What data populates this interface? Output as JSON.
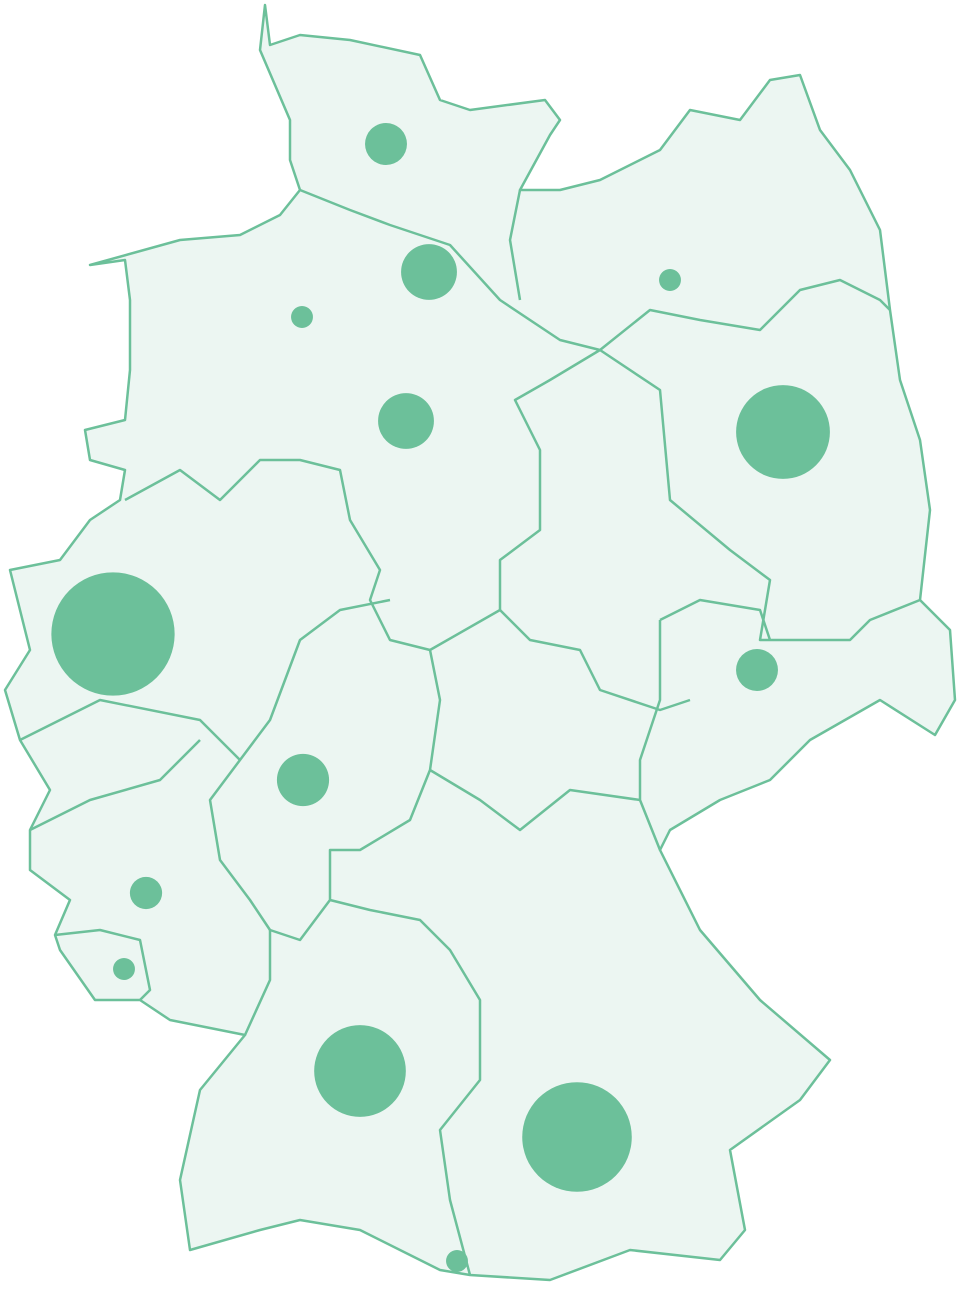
{
  "chart_data": {
    "type": "bubble-map",
    "color": "#6cc09a",
    "region_fill": "#ecf6f2",
    "border_color": "#6cc09a",
    "values": [
      4.4,
      7.8,
      1.2,
      1.2,
      7.8,
      22,
      38,
      4.4,
      6.8,
      2.6,
      1.2,
      21,
      30,
      1.2
    ]
  }
}
